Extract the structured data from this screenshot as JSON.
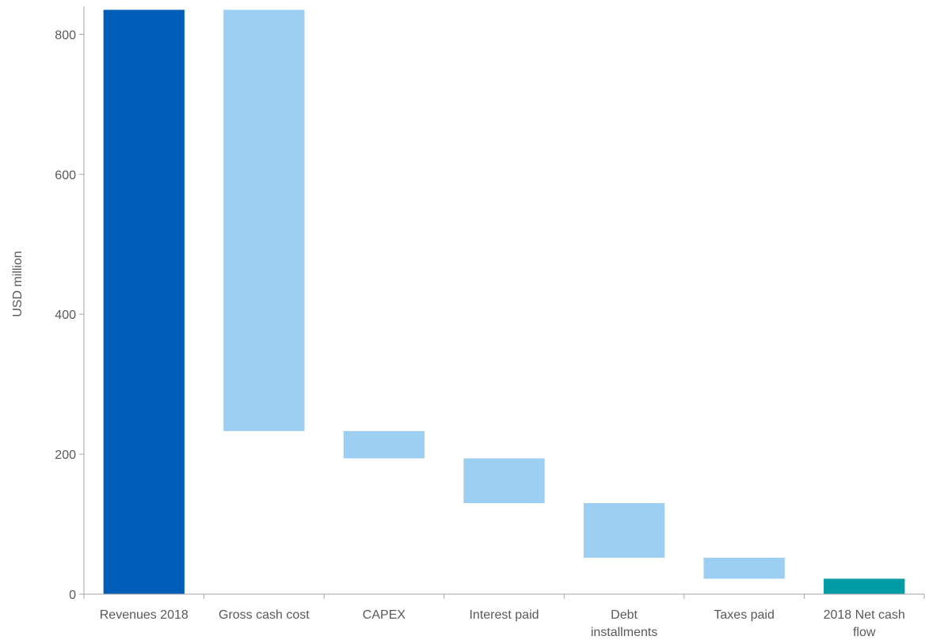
{
  "chart_data": {
    "type": "bar",
    "subtype": "waterfall",
    "title": "",
    "xlabel": "",
    "ylabel": "USD million",
    "ylim": [
      0,
      840
    ],
    "yticks": [
      0,
      200,
      400,
      600,
      800
    ],
    "grid": false,
    "legend": "none",
    "categories": [
      [
        "Revenues 2018"
      ],
      [
        "Gross cash cost"
      ],
      [
        "CAPEX"
      ],
      [
        "Interest paid"
      ],
      [
        "Debt",
        "installments"
      ],
      [
        "Taxes paid"
      ],
      [
        "2018 Net cash",
        "flow"
      ]
    ],
    "bars": [
      {
        "kind": "total",
        "low": 0,
        "high": 835
      },
      {
        "kind": "decrease",
        "low": 233,
        "high": 835
      },
      {
        "kind": "decrease",
        "low": 194,
        "high": 233
      },
      {
        "kind": "decrease",
        "low": 130,
        "high": 194
      },
      {
        "kind": "decrease",
        "low": 52,
        "high": 130
      },
      {
        "kind": "decrease",
        "low": 22,
        "high": 52
      },
      {
        "kind": "result",
        "low": 0,
        "high": 22
      }
    ],
    "colors": {
      "total": "#005EB8",
      "decrease": "#9DCFF3",
      "result": "#009CA6",
      "axis": "#A6A6A6"
    }
  }
}
